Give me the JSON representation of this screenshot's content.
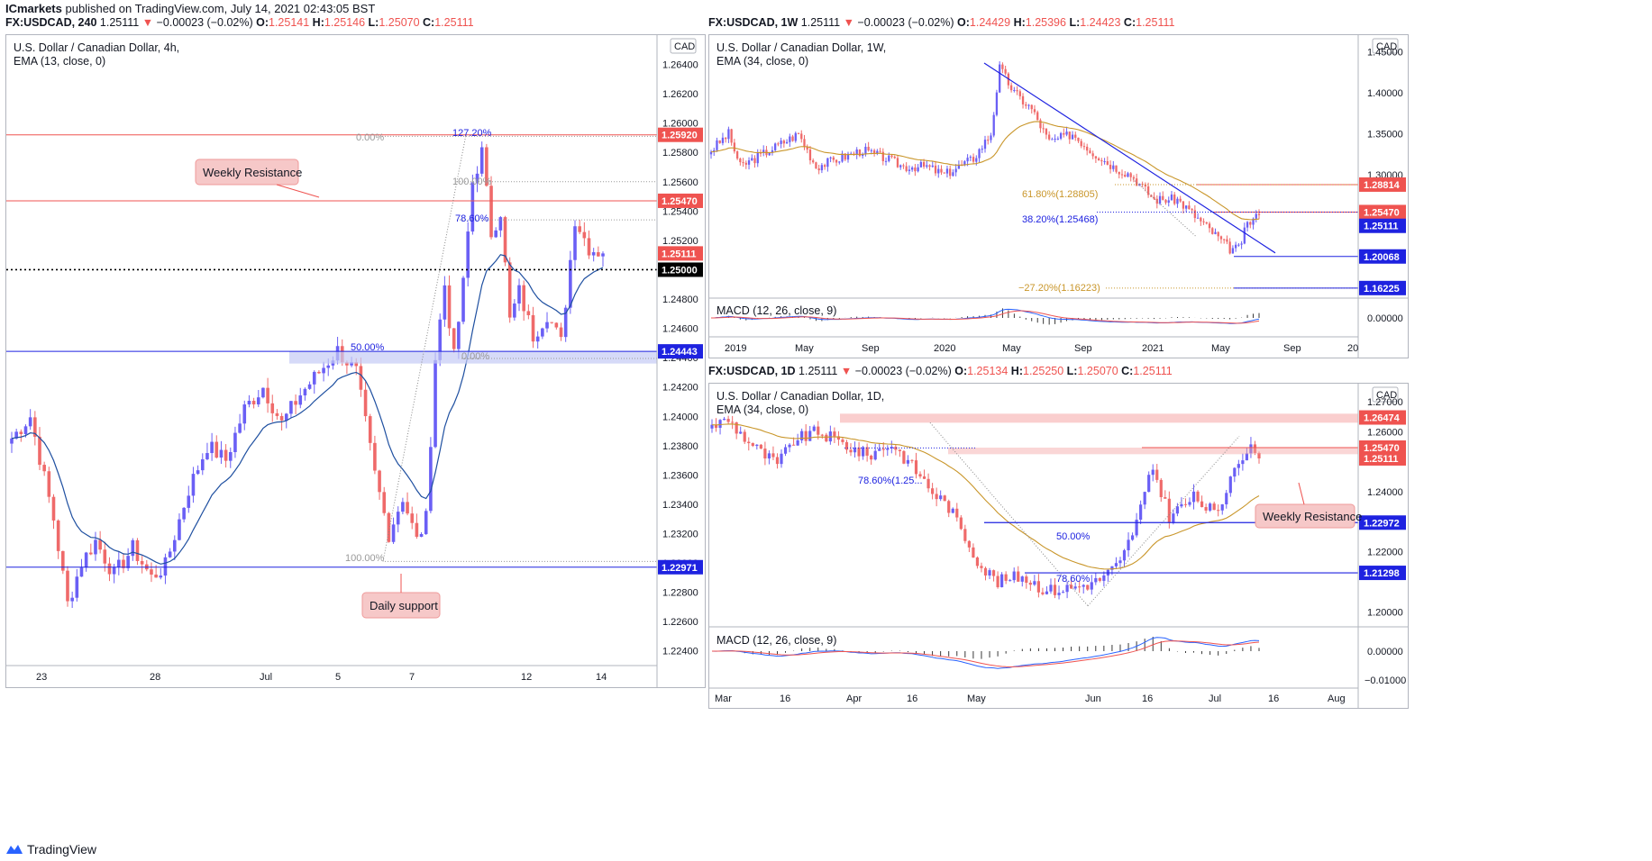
{
  "topbar": {
    "publisher": "ICmarkets",
    "published": "published on TradingView.com, July 14, 2021 02:43:05 BST"
  },
  "logo": {
    "icon": "tradingview-logo-icon",
    "text": "TradingView"
  },
  "panes": {
    "h4": {
      "header": {
        "symbol": "FX:USDCAD, 240",
        "last": "1.25111",
        "arrow": "▼",
        "change": "−0.00023 (−0.02%)",
        "o": "O:",
        "ov": "1.25141",
        "h": "H:",
        "hv": "1.25146",
        "l": "L:",
        "lv": "1.25070",
        "c": "C:",
        "cv": "1.25111"
      },
      "title": "U.S. Dollar / Canadian Dollar, 4h,",
      "indicator": "EMA (13, close, 0)",
      "currency": "CAD",
      "y_ticks": [
        "1.26400",
        "1.26200",
        "1.26000",
        "1.25800",
        "1.25600",
        "1.25400",
        "1.25200",
        "1.25000",
        "1.24800",
        "1.24600",
        "1.24400",
        "1.24200",
        "1.24000",
        "1.23800",
        "1.23600",
        "1.23400",
        "1.23200",
        "1.23000",
        "1.22800",
        "1.22600",
        "1.22400"
      ],
      "x_ticks": [
        "23",
        "28",
        "Jul",
        "5",
        "7",
        "12",
        "14"
      ],
      "price_labels": [
        {
          "text": "1.25920",
          "color": "#ef5350"
        },
        {
          "text": "1.25470",
          "color": "#ef5350"
        },
        {
          "text": "1.25111",
          "color": "#ef5350"
        },
        {
          "text": "1.25000",
          "color": "#000000"
        },
        {
          "text": "1.24443",
          "color": "#1e22e0"
        },
        {
          "text": "1.22971",
          "color": "#1e22e0"
        }
      ],
      "fib_labels": [
        "0.00%",
        "127.20%",
        "100.00%",
        "78.60%",
        "50.00%",
        "0.00%",
        "100.00%"
      ],
      "notes": [
        "Weekly Resistance",
        "Daily support"
      ]
    },
    "w1": {
      "header": {
        "symbol": "FX:USDCAD, 1W",
        "last": "1.25111",
        "arrow": "▼",
        "change": "−0.00023 (−0.02%)",
        "o": "O:",
        "ov": "1.24429",
        "h": "H:",
        "hv": "1.25396",
        "l": "L:",
        "lv": "1.24423",
        "c": "C:",
        "cv": "1.25111"
      },
      "title": "U.S. Dollar / Canadian Dollar, 1W,",
      "indicator": "EMA (34, close, 0)",
      "currency": "CAD",
      "y_ticks": [
        "1.45000",
        "1.40000",
        "1.35000",
        "1.30000"
      ],
      "macd_tick": "0.00000",
      "macd_label": "MACD (12, 26, close, 9)",
      "x_ticks": [
        "2019",
        "May",
        "Sep",
        "2020",
        "May",
        "Sep",
        "2021",
        "May",
        "Sep",
        "20"
      ],
      "price_labels": [
        {
          "text": "1.28814",
          "color": "#ef5350"
        },
        {
          "text": "1.25470",
          "color": "#ef5350"
        },
        {
          "text": "1.25111",
          "color": "#1e22e0"
        },
        {
          "text": "1.20068",
          "color": "#1e22e0"
        },
        {
          "text": "1.16225",
          "color": "#1e22e0"
        }
      ],
      "fib_labels": [
        "61.80%(1.28805)",
        "38.20%(1.25468)",
        "−27.20%(1.16223)"
      ]
    },
    "d1": {
      "header": {
        "symbol": "FX:USDCAD, 1D",
        "last": "1.25111",
        "arrow": "▼",
        "change": "−0.00023 (−0.02%)",
        "o": "O:",
        "ov": "1.25134",
        "h": "H:",
        "hv": "1.25250",
        "l": "L:",
        "lv": "1.25070",
        "c": "C:",
        "cv": "1.25111"
      },
      "title": "U.S. Dollar / Canadian Dollar, 1D,",
      "indicator": "EMA (34, close, 0)",
      "currency": "CAD",
      "y_ticks": [
        "1.27000",
        "1.26000",
        "1.24000",
        "1.22000",
        "1.20000"
      ],
      "macd_ticks": [
        "0.00000",
        "−0.01000"
      ],
      "macd_label": "MACD (12, 26, close, 9)",
      "x_ticks": [
        "Mar",
        "16",
        "Apr",
        "16",
        "May",
        "Jun",
        "16",
        "Jul",
        "16",
        "Aug"
      ],
      "price_labels": [
        {
          "text": "1.26474",
          "color": "#ef5350"
        },
        {
          "text": "1.25470",
          "color": "#ef5350"
        },
        {
          "text": "1.25111",
          "color": "#ef5350"
        },
        {
          "text": "1.22972",
          "color": "#1e22e0"
        },
        {
          "text": "1.21298",
          "color": "#1e22e0"
        }
      ],
      "fib_labels": [
        "78.60%(1.25...",
        "50.00%",
        "78.60%"
      ],
      "notes": [
        "Weekly Resistance"
      ]
    }
  },
  "chart_data": [
    {
      "type": "candlestick",
      "title": "U.S. Dollar / Canadian Dollar, 4h,",
      "symbol": "FX:USDCAD",
      "timeframe": "4h",
      "ylim": [
        1.223,
        1.266
      ],
      "indicator": "EMA (13, close, 0)",
      "horizontal_levels": [
        1.2592,
        1.2547,
        1.25,
        1.24443,
        1.22971
      ],
      "ohlc_last": {
        "o": 1.25141,
        "h": 1.25146,
        "l": 1.2507,
        "c": 1.25111
      }
    },
    {
      "type": "candlestick",
      "title": "U.S. Dollar / Canadian Dollar, 1W,",
      "symbol": "FX:USDCAD",
      "timeframe": "1W",
      "ylim": [
        1.15,
        1.47
      ],
      "indicator": "EMA (34, close, 0)",
      "horizontal_levels": [
        1.28814,
        1.2547,
        1.20068,
        1.16225
      ],
      "ohlc_last": {
        "o": 1.24429,
        "h": 1.25396,
        "l": 1.24423,
        "c": 1.25111
      }
    },
    {
      "type": "candlestick",
      "title": "U.S. Dollar / Canadian Dollar, 1D,",
      "symbol": "FX:USDCAD",
      "timeframe": "1D",
      "ylim": [
        1.195,
        1.276
      ],
      "indicator": "EMA (34, close, 0)",
      "horizontal_levels": [
        1.26474,
        1.2547,
        1.22972,
        1.21298
      ],
      "ohlc_last": {
        "o": 1.25134,
        "h": 1.2525,
        "l": 1.2507,
        "c": 1.25111
      }
    }
  ]
}
